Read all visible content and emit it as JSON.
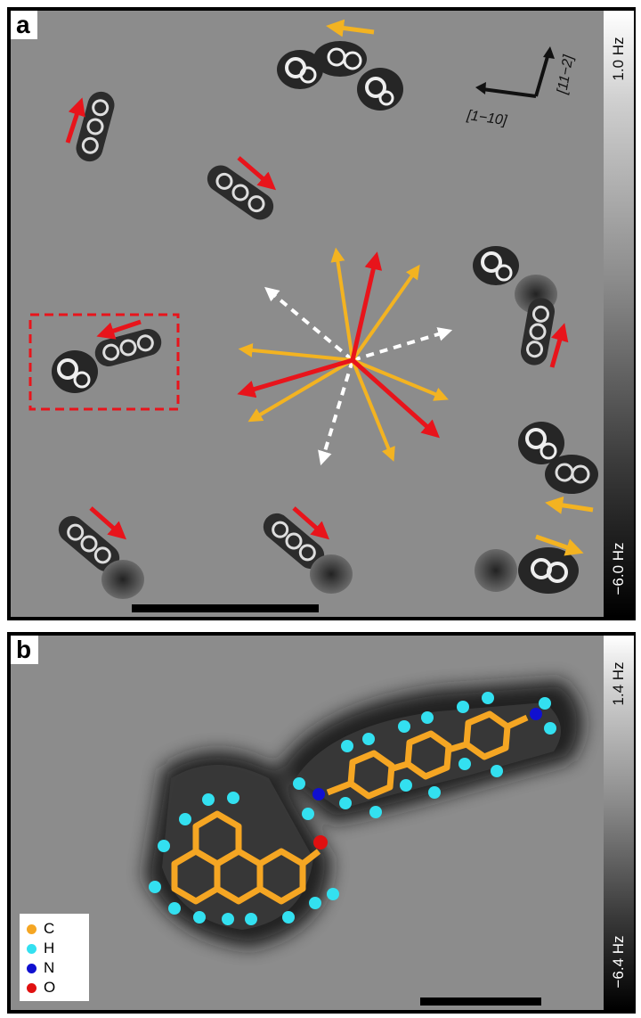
{
  "panel_a": {
    "label": "a",
    "colorbar_max": "1.0 Hz",
    "colorbar_min": "−6.0 Hz",
    "direction_1": "[1−10]",
    "direction_2": "[11−2]"
  },
  "panel_b": {
    "label": "b",
    "colorbar_max": "1.4 Hz",
    "colorbar_min": "−6.4 Hz",
    "legend": [
      {
        "symbol": "C",
        "color": "#f5a623"
      },
      {
        "symbol": "H",
        "color": "#33e0f0"
      },
      {
        "symbol": "N",
        "color": "#1010d0"
      },
      {
        "symbol": "O",
        "color": "#e01010"
      }
    ]
  },
  "colors": {
    "red_arrow": "#e8141b",
    "orange_arrow": "#f3b321",
    "white_arrow": "#ffffff",
    "dashed_box": "#e8141b"
  }
}
